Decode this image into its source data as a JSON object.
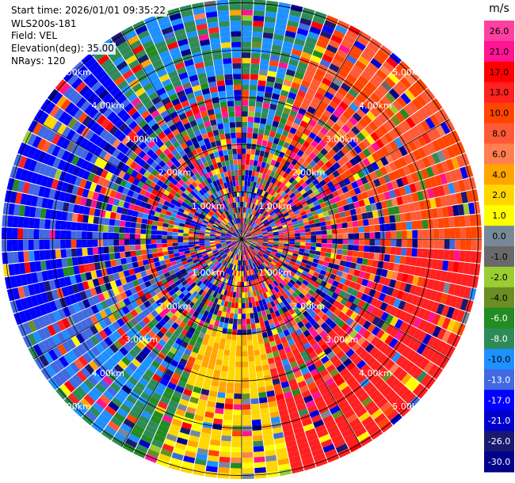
{
  "header": {
    "start_time": "Start time: 2026/01/01 09:35:22",
    "instrument": "WLS200s-181",
    "field": "Field: VEL",
    "elevation": "Elevation(deg): 35.00",
    "nrays": "NRays: 120"
  },
  "colorbar": {
    "unit": "m/s",
    "ticks": [
      "26.0",
      "21.0",
      "17.0",
      "13.0",
      "10.0",
      "8.0",
      "6.0",
      "4.0",
      "2.0",
      "1.0",
      "0.0",
      "-1.0",
      "-2.0",
      "-4.0",
      "-6.0",
      "-8.0",
      "-10.0",
      "-13.0",
      "-17.0",
      "-21.0",
      "-26.0",
      "-30.0"
    ],
    "colors": [
      "#ff40a0",
      "#ff1493",
      "#ff0000",
      "#ff2020",
      "#ff4500",
      "#ff5a36",
      "#ff7f50",
      "#ffa500",
      "#ffd700",
      "#ffff00",
      "#778899",
      "#696969",
      "#9acd32",
      "#6b8e23",
      "#228b22",
      "#2e8b57",
      "#1e90ff",
      "#4169e1",
      "#0000ff",
      "#0000cd",
      "#191970",
      "#00008b"
    ]
  },
  "chart_data": {
    "type": "heatmap",
    "projection": "polar PPI scan",
    "field": "VEL",
    "units": "m/s",
    "nrays": 120,
    "elevation_deg": 35.0,
    "range_km": [
      0,
      5.0
    ],
    "range_rings_km": [
      1.0,
      2.0,
      3.0,
      4.0,
      5.0
    ],
    "ring_labels": [
      "1.00km",
      "2.00km",
      "3.00km",
      "4.00km",
      "5.00km"
    ],
    "value_range": [
      -30,
      26
    ],
    "sectors": [
      {
        "azimuth_deg": [
          0,
          90
        ],
        "dominant_velocity": "positive ~1 to 21 m/s in outer gates"
      },
      {
        "azimuth_deg": [
          90,
          180
        ],
        "dominant_velocity": "positive ~6 to 21 m/s (red/orange)"
      },
      {
        "azimuth_deg": [
          170,
          200
        ],
        "dominant_velocity": "~0 to 6 m/s (yellow/gray)"
      },
      {
        "azimuth_deg": [
          200,
          250
        ],
        "dominant_velocity": "negative ~-2 to -13 m/s (green/blue)"
      },
      {
        "azimuth_deg": [
          250,
          320
        ],
        "dominant_velocity": "negative ~-13 to -17 m/s (blue)"
      },
      {
        "azimuth_deg": [
          320,
          360
        ],
        "dominant_velocity": "noisy / mixed"
      }
    ]
  }
}
